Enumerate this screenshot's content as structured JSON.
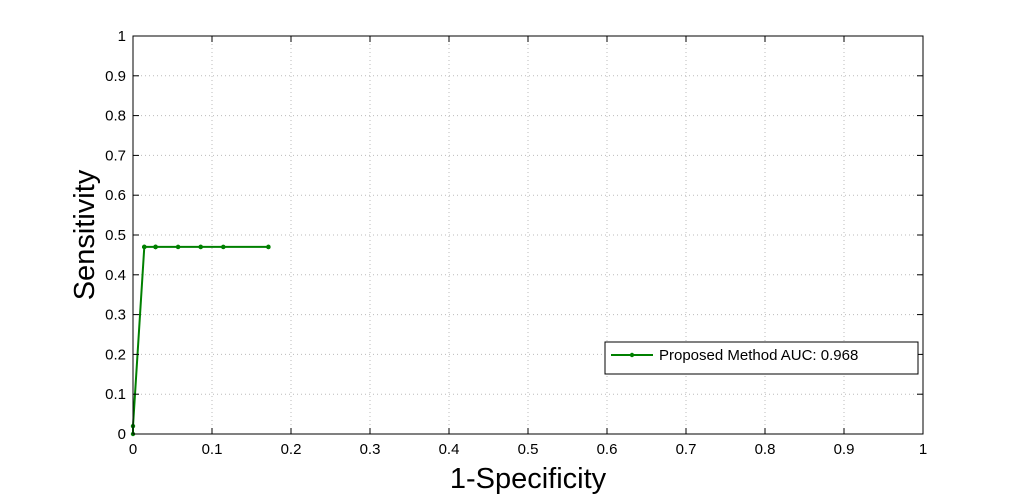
{
  "chart_data": {
    "type": "line",
    "title": "",
    "xlabel": "1-Specificity",
    "ylabel": "Sensitivity",
    "xlim": [
      0,
      1
    ],
    "ylim": [
      0,
      1
    ],
    "xticks": [
      0,
      0.1,
      0.2,
      0.3,
      0.4,
      0.5,
      0.6,
      0.7,
      0.8,
      0.9,
      1
    ],
    "yticks": [
      0,
      0.1,
      0.2,
      0.3,
      0.4,
      0.5,
      0.6,
      0.7,
      0.8,
      0.9,
      1
    ],
    "xtick_labels": [
      "0",
      "0.1",
      "0.2",
      "0.3",
      "0.4",
      "0.5",
      "0.6",
      "0.7",
      "0.8",
      "0.9",
      "1"
    ],
    "ytick_labels": [
      "0",
      "0.1",
      "0.2",
      "0.3",
      "0.4",
      "0.5",
      "0.6",
      "0.7",
      "0.8",
      "0.9",
      "1"
    ],
    "grid": true,
    "legend_position": "bottom-right",
    "series": [
      {
        "name": "Proposed Method AUC: 0.968",
        "color": "#008000",
        "x": [
          0,
          0,
          0.0143,
          0.0143,
          0.0143,
          0.0143,
          0.0286,
          0.0286,
          0.0286,
          0.0286,
          0.0286,
          0.0286,
          0.0571,
          0.0571,
          0.0857,
          0.0857,
          0.0857,
          0.1143,
          0.1143,
          0.1714,
          0.1714,
          0.1714
        ],
        "y": [
          0,
          0.02,
          0.47,
          0.47,
          0.47,
          0.47,
          0.47,
          0.47,
          0.47,
          0.47,
          0.47,
          0.47,
          0.47,
          0.47,
          0.47,
          0.47,
          0.47,
          0.47,
          0.47,
          0.47,
          0.47,
          0.47
        ]
      }
    ]
  }
}
